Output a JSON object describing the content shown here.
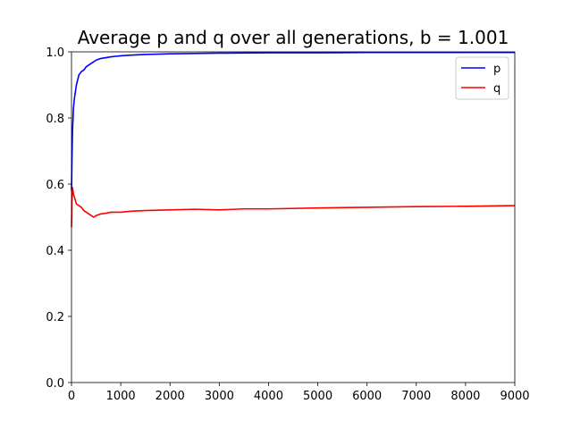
{
  "chart_data": {
    "type": "line",
    "title": "Average p and q over all generations, b = 1.001",
    "xlabel": "",
    "ylabel": "",
    "xlim": [
      0,
      9000
    ],
    "ylim": [
      0,
      1.0
    ],
    "x_ticks": [
      "0",
      "1000",
      "2000",
      "3000",
      "4000",
      "5000",
      "6000",
      "7000",
      "8000",
      "9000"
    ],
    "y_ticks": [
      "0.0",
      "0.2",
      "0.4",
      "0.6",
      "0.8",
      "1.0"
    ],
    "grid": false,
    "legend_position": "top-right",
    "series": [
      {
        "name": "p",
        "color": "#0000ff",
        "x": [
          0,
          10,
          20,
          40,
          60,
          80,
          100,
          150,
          200,
          250,
          300,
          400,
          500,
          600,
          800,
          1000,
          1200,
          1500,
          2000,
          2500,
          3000,
          4000,
          5000,
          6000,
          7000,
          8000,
          9000
        ],
        "values": [
          0.58,
          0.68,
          0.76,
          0.83,
          0.86,
          0.88,
          0.9,
          0.93,
          0.94,
          0.945,
          0.955,
          0.965,
          0.975,
          0.98,
          0.985,
          0.988,
          0.99,
          0.992,
          0.994,
          0.995,
          0.996,
          0.997,
          0.997,
          0.998,
          0.998,
          0.998,
          0.998
        ]
      },
      {
        "name": "q",
        "color": "#ff0000",
        "x": [
          0,
          10,
          20,
          40,
          60,
          80,
          100,
          150,
          200,
          250,
          300,
          350,
          400,
          450,
          500,
          600,
          700,
          800,
          1000,
          1200,
          1500,
          2000,
          2500,
          3000,
          3500,
          4000,
          5000,
          6000,
          7000,
          8000,
          9000
        ],
        "values": [
          0.47,
          0.55,
          0.59,
          0.57,
          0.56,
          0.55,
          0.54,
          0.535,
          0.53,
          0.52,
          0.515,
          0.51,
          0.505,
          0.5,
          0.505,
          0.51,
          0.512,
          0.515,
          0.515,
          0.518,
          0.52,
          0.522,
          0.524,
          0.522,
          0.525,
          0.525,
          0.528,
          0.53,
          0.532,
          0.533,
          0.535
        ]
      }
    ]
  }
}
